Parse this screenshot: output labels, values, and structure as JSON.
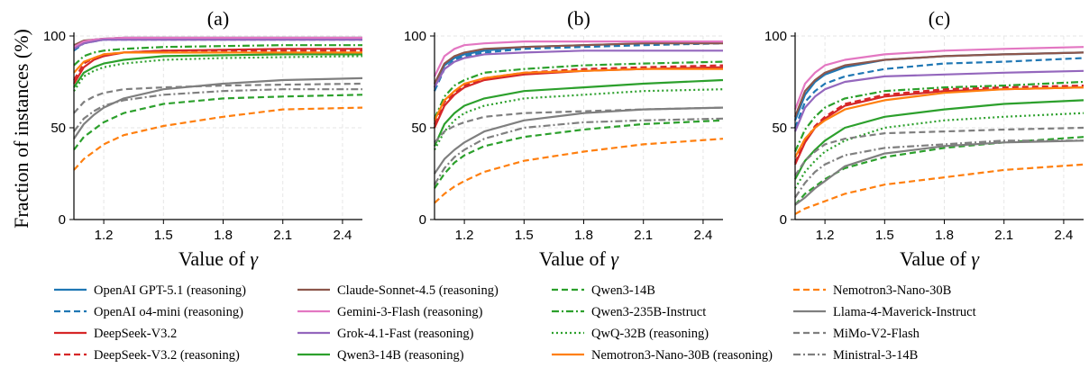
{
  "figure": {
    "ylabel": "Fraction of instances (%)",
    "xlabel_prefix": "Value of ",
    "xlabel_symbol": "γ"
  },
  "series_styles": [
    {
      "name": "OpenAI GPT-5.1 (reasoning)",
      "color": "#1f77b4",
      "dash": "solid"
    },
    {
      "name": "OpenAI o4-mini (reasoning)",
      "color": "#1f77b4",
      "dash": "dashed"
    },
    {
      "name": "DeepSeek-V3.2",
      "color": "#d62728",
      "dash": "solid"
    },
    {
      "name": "DeepSeek-V3.2 (reasoning)",
      "color": "#d62728",
      "dash": "dashed"
    },
    {
      "name": "Claude-Sonnet-4.5 (reasoning)",
      "color": "#8c564b",
      "dash": "solid"
    },
    {
      "name": "Gemini-3-Flash (reasoning)",
      "color": "#e377c2",
      "dash": "solid"
    },
    {
      "name": "Grok-4.1-Fast (reasoning)",
      "color": "#9467bd",
      "dash": "solid"
    },
    {
      "name": "Qwen3-14B (reasoning)",
      "color": "#2ca02c",
      "dash": "solid"
    },
    {
      "name": "Qwen3-14B",
      "color": "#2ca02c",
      "dash": "dashed"
    },
    {
      "name": "Qwen3-235B-Instruct",
      "color": "#2ca02c",
      "dash": "dashdot"
    },
    {
      "name": "QwQ-32B (reasoning)",
      "color": "#2ca02c",
      "dash": "dotted"
    },
    {
      "name": "Nemotron3-Nano-30B (reasoning)",
      "color": "#ff7f0e",
      "dash": "solid"
    },
    {
      "name": "Nemotron3-Nano-30B",
      "color": "#ff7f0e",
      "dash": "dashed"
    },
    {
      "name": "Llama-4-Maverick-Instruct",
      "color": "#7f7f7f",
      "dash": "solid"
    },
    {
      "name": "MiMo-V2-Flash",
      "color": "#7f7f7f",
      "dash": "dashed"
    },
    {
      "name": "Ministral-3-14B",
      "color": "#7f7f7f",
      "dash": "dashdot"
    }
  ],
  "chart_data": [
    {
      "type": "line",
      "title": "(a)",
      "xlabel": "Value of γ",
      "ylabel": "Fraction of instances (%)",
      "xlim": [
        1.05,
        2.5
      ],
      "ylim": [
        0,
        100
      ],
      "xticks": [
        1.2,
        1.5,
        1.8,
        2.1,
        2.4
      ],
      "yticks": [
        0,
        50,
        100
      ],
      "grid": true,
      "x": [
        1.05,
        1.1,
        1.15,
        1.2,
        1.3,
        1.5,
        1.8,
        2.1,
        2.5
      ],
      "series": [
        {
          "name": "OpenAI GPT-5.1 (reasoning)",
          "values": [
            93,
            97,
            98,
            98.5,
            99,
            99,
            99,
            99,
            99
          ]
        },
        {
          "name": "OpenAI o4-mini (reasoning)",
          "values": [
            92,
            96,
            97,
            98,
            98,
            98,
            98,
            98,
            98
          ]
        },
        {
          "name": "DeepSeek-V3.2",
          "values": [
            74,
            83,
            87,
            89,
            91,
            92,
            92.5,
            93,
            93
          ]
        },
        {
          "name": "DeepSeek-V3.2 (reasoning)",
          "values": [
            76,
            85,
            88,
            90,
            91,
            92,
            92,
            92,
            92
          ]
        },
        {
          "name": "Claude-Sonnet-4.5 (reasoning)",
          "values": [
            95,
            97.5,
            98,
            98.5,
            99,
            99,
            99,
            99,
            99
          ]
        },
        {
          "name": "Gemini-3-Flash (reasoning)",
          "values": [
            94,
            97,
            98,
            98.5,
            99,
            99,
            99,
            99,
            99
          ]
        },
        {
          "name": "Grok-4.1-Fast (reasoning)",
          "values": [
            93,
            96,
            97,
            98,
            98,
            98,
            98,
            98,
            98
          ]
        },
        {
          "name": "Qwen3-14B (reasoning)",
          "values": [
            72,
            80,
            83,
            85,
            87,
            89,
            89.5,
            90,
            90
          ]
        },
        {
          "name": "Qwen3-14B",
          "values": [
            38,
            45,
            49,
            53,
            58,
            63,
            66,
            67,
            68
          ]
        },
        {
          "name": "Qwen3-235B-Instruct",
          "values": [
            84,
            89,
            91,
            92,
            93,
            94,
            94.5,
            95,
            95
          ]
        },
        {
          "name": "QwQ-32B (reasoning)",
          "values": [
            70,
            78,
            81,
            83,
            85,
            87,
            88,
            88.5,
            89
          ]
        },
        {
          "name": "Nemotron3-Nano-30B (reasoning)",
          "values": [
            80,
            86,
            88,
            90,
            91,
            91,
            91,
            91,
            91
          ]
        },
        {
          "name": "Nemotron3-Nano-30B",
          "values": [
            27,
            33,
            37,
            41,
            46,
            51,
            56,
            60,
            61
          ]
        },
        {
          "name": "Llama-4-Maverick-Instruct",
          "values": [
            44,
            52,
            57,
            61,
            66,
            71,
            74,
            76,
            77
          ]
        },
        {
          "name": "MiMo-V2-Flash",
          "values": [
            58,
            64,
            67,
            69,
            71,
            72,
            73,
            73.5,
            74
          ]
        },
        {
          "name": "Ministral-3-14B",
          "values": [
            48,
            55,
            59,
            62,
            65,
            68,
            70,
            71,
            71
          ]
        }
      ]
    },
    {
      "type": "line",
      "title": "(b)",
      "xlabel": "Value of γ",
      "ylabel": "",
      "xlim": [
        1.05,
        2.5
      ],
      "ylim": [
        0,
        100
      ],
      "xticks": [
        1.2,
        1.5,
        1.8,
        2.1,
        2.4
      ],
      "yticks": [
        0,
        50,
        100
      ],
      "grid": true,
      "x": [
        1.05,
        1.1,
        1.15,
        1.2,
        1.3,
        1.5,
        1.8,
        2.1,
        2.5
      ],
      "series": [
        {
          "name": "OpenAI GPT-5.1 (reasoning)",
          "values": [
            72,
            84,
            88,
            90,
            92,
            94,
            95,
            96,
            97
          ]
        },
        {
          "name": "OpenAI o4-mini (reasoning)",
          "values": [
            70,
            82,
            87,
            89,
            91,
            93,
            94,
            95,
            96
          ]
        },
        {
          "name": "DeepSeek-V3.2",
          "values": [
            50,
            62,
            68,
            72,
            76,
            79,
            81,
            82,
            83
          ]
        },
        {
          "name": "DeepSeek-V3.2 (reasoning)",
          "values": [
            52,
            64,
            69,
            73,
            77,
            80,
            82,
            83,
            84
          ]
        },
        {
          "name": "Claude-Sonnet-4.5 (reasoning)",
          "values": [
            74,
            85,
            89,
            91,
            93,
            94,
            95,
            96,
            96
          ]
        },
        {
          "name": "Gemini-3-Flash (reasoning)",
          "values": [
            78,
            89,
            93,
            95,
            96,
            97,
            97,
            97,
            97
          ]
        },
        {
          "name": "Grok-4.1-Fast (reasoning)",
          "values": [
            72,
            82,
            86,
            88,
            90,
            91,
            92,
            92,
            92
          ]
        },
        {
          "name": "Qwen3-14B (reasoning)",
          "values": [
            40,
            52,
            58,
            62,
            66,
            70,
            72,
            74,
            76
          ]
        },
        {
          "name": "Qwen3-14B",
          "values": [
            17,
            25,
            31,
            35,
            40,
            45,
            49,
            52,
            54
          ]
        },
        {
          "name": "Qwen3-235B-Instruct",
          "values": [
            55,
            67,
            73,
            76,
            80,
            82,
            84,
            85,
            86
          ]
        },
        {
          "name": "QwQ-32B (reasoning)",
          "values": [
            38,
            48,
            54,
            58,
            62,
            66,
            68,
            70,
            71
          ]
        },
        {
          "name": "Nemotron3-Nano-30B (reasoning)",
          "values": [
            54,
            65,
            70,
            74,
            77,
            80,
            81,
            82,
            82
          ]
        },
        {
          "name": "Nemotron3-Nano-30B",
          "values": [
            9,
            14,
            18,
            21,
            26,
            32,
            37,
            41,
            44
          ]
        },
        {
          "name": "Llama-4-Maverick-Instruct",
          "values": [
            25,
            33,
            38,
            42,
            48,
            54,
            58,
            60,
            61
          ]
        },
        {
          "name": "MiMo-V2-Flash",
          "values": [
            42,
            48,
            51,
            53,
            56,
            58,
            59,
            60,
            61
          ]
        },
        {
          "name": "Ministral-3-14B",
          "values": [
            19,
            28,
            34,
            38,
            44,
            50,
            53,
            54,
            55
          ]
        }
      ]
    },
    {
      "type": "line",
      "title": "(c)",
      "xlabel": "Value of γ",
      "ylabel": "",
      "xlim": [
        1.05,
        2.5
      ],
      "ylim": [
        0,
        100
      ],
      "xticks": [
        1.2,
        1.5,
        1.8,
        2.1,
        2.4
      ],
      "yticks": [
        0,
        50,
        100
      ],
      "grid": true,
      "x": [
        1.05,
        1.1,
        1.15,
        1.2,
        1.3,
        1.5,
        1.8,
        2.1,
        2.5
      ],
      "series": [
        {
          "name": "OpenAI GPT-5.1 (reasoning)",
          "values": [
            54,
            68,
            75,
            79,
            83,
            87,
            89,
            90,
            91
          ]
        },
        {
          "name": "OpenAI o4-mini (reasoning)",
          "values": [
            50,
            64,
            70,
            74,
            78,
            82,
            85,
            86,
            88
          ]
        },
        {
          "name": "DeepSeek-V3.2",
          "values": [
            30,
            42,
            50,
            55,
            62,
            67,
            70,
            71,
            72
          ]
        },
        {
          "name": "DeepSeek-V3.2 (reasoning)",
          "values": [
            31,
            43,
            51,
            56,
            63,
            68,
            71,
            72,
            73
          ]
        },
        {
          "name": "Claude-Sonnet-4.5 (reasoning)",
          "values": [
            56,
            70,
            76,
            80,
            84,
            87,
            89,
            90,
            91
          ]
        },
        {
          "name": "Gemini-3-Flash (reasoning)",
          "values": [
            60,
            74,
            80,
            84,
            87,
            90,
            92,
            93,
            94
          ]
        },
        {
          "name": "Grok-4.1-Fast (reasoning)",
          "values": [
            48,
            61,
            67,
            71,
            75,
            78,
            79,
            80,
            81
          ]
        },
        {
          "name": "Qwen3-14B (reasoning)",
          "values": [
            22,
            32,
            38,
            43,
            50,
            56,
            60,
            63,
            65
          ]
        },
        {
          "name": "Qwen3-14B",
          "values": [
            8,
            14,
            18,
            22,
            28,
            34,
            39,
            42,
            45
          ]
        },
        {
          "name": "Qwen3-235B-Instruct",
          "values": [
            37,
            49,
            56,
            61,
            66,
            70,
            72,
            73,
            75
          ]
        },
        {
          "name": "QwQ-32B (reasoning)",
          "values": [
            17,
            26,
            32,
            37,
            43,
            50,
            54,
            56,
            58
          ]
        },
        {
          "name": "Nemotron3-Nano-30B (reasoning)",
          "values": [
            34,
            44,
            50,
            54,
            60,
            65,
            69,
            71,
            72
          ]
        },
        {
          "name": "Nemotron3-Nano-30B",
          "values": [
            3,
            6,
            8,
            10,
            14,
            19,
            23,
            27,
            30
          ]
        },
        {
          "name": "Llama-4-Maverick-Instruct",
          "values": [
            8,
            12,
            17,
            21,
            29,
            36,
            40,
            42,
            43
          ]
        },
        {
          "name": "MiMo-V2-Flash",
          "values": [
            24,
            32,
            37,
            41,
            44,
            47,
            48,
            49,
            50
          ]
        },
        {
          "name": "Ministral-3-14B",
          "values": [
            12,
            20,
            26,
            30,
            35,
            39,
            41,
            43,
            43
          ]
        }
      ]
    }
  ]
}
